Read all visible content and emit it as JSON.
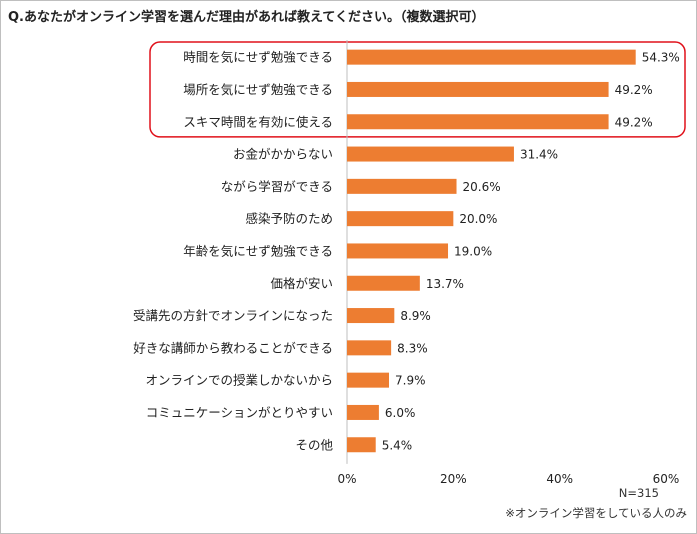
{
  "title": "Q.あなたがオンライン学習を選んだ理由があれば教えてください。（複数選択可）",
  "sample_size": "N=315",
  "footnote": "※オンライン学習をしている人のみ",
  "colors": {
    "bar": "#ED7D31",
    "highlight_border": "#E0101A",
    "axis": "#bfbfbf"
  },
  "chart_data": {
    "type": "bar",
    "orientation": "horizontal",
    "categories": [
      "時間を気にせず勉強できる",
      "場所を気にせず勉強できる",
      "スキマ時間を有効に使える",
      "お金がかからない",
      "ながら学習ができる",
      "感染予防のため",
      "年齢を気にせず勉強できる",
      "価格が安い",
      "受講先の方針でオンラインになった",
      "好きな講師から教わることができる",
      "オンラインでの授業しかないから",
      "コミュニケーションがとりやすい",
      "その他"
    ],
    "values": [
      54.3,
      49.2,
      49.2,
      31.4,
      20.6,
      20.0,
      19.0,
      13.7,
      8.9,
      8.3,
      7.9,
      6.0,
      5.4
    ],
    "value_labels": [
      "54.3%",
      "49.2%",
      "49.2%",
      "31.4%",
      "20.6%",
      "20.0%",
      "19.0%",
      "13.7%",
      "8.9%",
      "8.3%",
      "7.9%",
      "6.0%",
      "5.4%"
    ],
    "xlim": [
      0,
      60
    ],
    "xticks": [
      "0%",
      "20%",
      "40%",
      "60%"
    ],
    "grid": false,
    "highlighted_categories": [
      0,
      1,
      2
    ]
  }
}
